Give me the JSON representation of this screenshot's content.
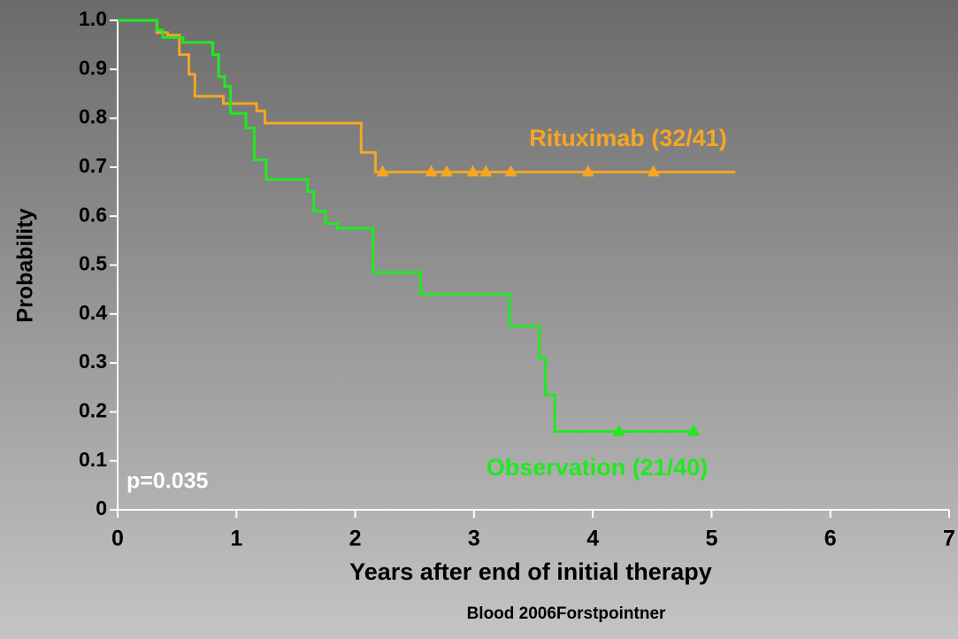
{
  "chart_data": {
    "type": "step",
    "x_label": "Years after end of initial therapy",
    "y_label": "Probability",
    "annotation": "p=0.035",
    "source": "Blood 2006Forstpointner",
    "xlim": [
      0,
      7
    ],
    "xticks": [
      0,
      1,
      2,
      3,
      4,
      5,
      6,
      7
    ],
    "ylim": [
      0,
      1
    ],
    "yticks": [
      0,
      0.1,
      0.2,
      0.3,
      0.4,
      0.5,
      0.6,
      0.7,
      0.8,
      0.9,
      {
        "value": 1,
        "label": "1.0"
      }
    ],
    "series": [
      {
        "name": "Rituximab (32/41)",
        "color": "#f5a623",
        "x": [
          0,
          0.33,
          0.42,
          0.52,
          0.6,
          0.65,
          0.89,
          1.17,
          1.24,
          2.05,
          2.17,
          5.2
        ],
        "values": [
          1.0,
          0.975,
          0.97,
          0.93,
          0.89,
          0.845,
          0.83,
          0.815,
          0.79,
          0.73,
          0.69,
          0.69
        ],
        "censor_x": [
          2.23,
          2.64,
          2.77,
          2.99,
          3.1,
          3.31,
          3.96,
          4.51
        ],
        "censor_values": [
          0.69,
          0.69,
          0.69,
          0.69,
          0.69,
          0.69,
          0.69,
          0.69
        ]
      },
      {
        "name": "Observation (21/40)",
        "color": "#22e822",
        "x": [
          0,
          0.33,
          0.38,
          0.55,
          0.8,
          0.85,
          0.9,
          0.95,
          1.08,
          1.15,
          1.25,
          1.6,
          1.65,
          1.75,
          1.85,
          2.15,
          2.55,
          3.3,
          3.55,
          3.6,
          3.68,
          4.85
        ],
        "values": [
          1.0,
          0.98,
          0.965,
          0.955,
          0.93,
          0.885,
          0.865,
          0.81,
          0.78,
          0.715,
          0.675,
          0.65,
          0.61,
          0.585,
          0.575,
          0.485,
          0.44,
          0.375,
          0.31,
          0.235,
          0.16,
          0.16
        ],
        "censor_x": [
          4.22,
          4.85
        ],
        "censor_values": [
          0.16,
          0.16
        ]
      }
    ]
  }
}
